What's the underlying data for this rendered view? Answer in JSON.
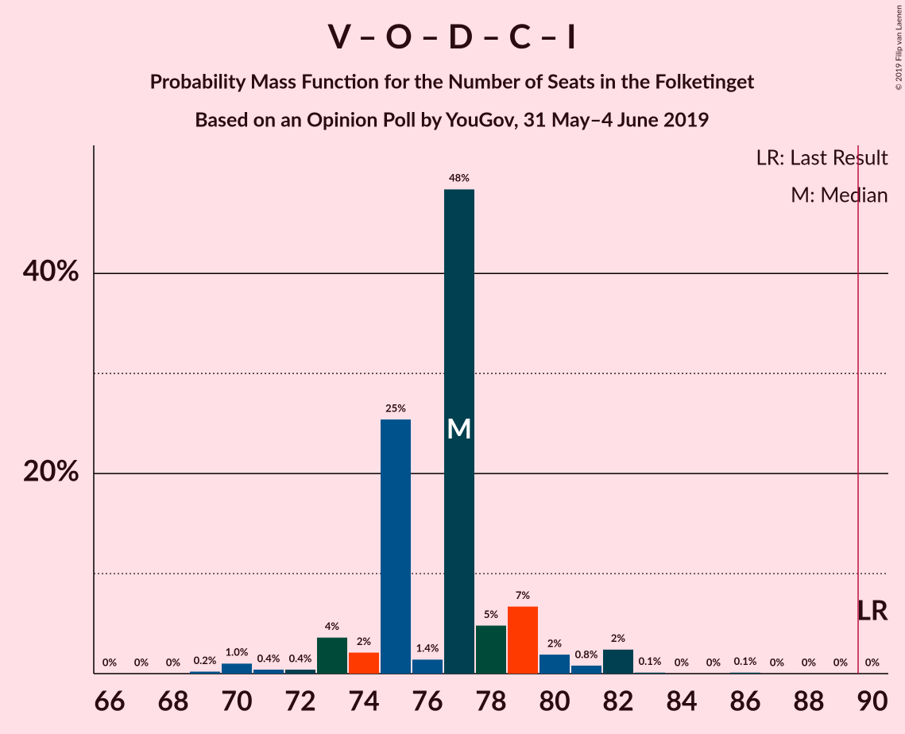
{
  "chart_data": {
    "type": "bar",
    "title": "V – O – D – C – I",
    "subtitle": "Probability Mass Function for the Number of Seats in the Folketinget",
    "subtitle2": "Based on an Opinion Poll by YouGov, 31 May–4 June 2019",
    "copyright": "© 2019 Filip van Laenen",
    "legend": [
      "LR: Last Result",
      "M: Median"
    ],
    "median": 77,
    "median_label": "M",
    "last_result": 90,
    "last_result_label": "LR",
    "categories": [
      66,
      null,
      68,
      null,
      70,
      null,
      72,
      null,
      74,
      null,
      76,
      null,
      78,
      null,
      80,
      null,
      82,
      null,
      84,
      null,
      86,
      null,
      88,
      null,
      90
    ],
    "seats": [
      66,
      67,
      68,
      69,
      70,
      71,
      72,
      73,
      74,
      75,
      76,
      77,
      78,
      79,
      80,
      81,
      82,
      83,
      84,
      85,
      86,
      87,
      88,
      89,
      90
    ],
    "values": [
      0,
      0,
      0,
      0.2,
      1.0,
      0.4,
      0.4,
      3.6,
      2.1,
      25.4,
      1.4,
      48.4,
      4.8,
      6.7,
      1.9,
      0.8,
      2.4,
      0.1,
      0,
      0,
      0.1,
      0,
      0,
      0,
      0
    ],
    "value_labels": [
      "0%",
      "0%",
      "0%",
      "0.2%",
      "1.0%",
      "0.4%",
      "0.4%",
      "4%",
      "2%",
      "25%",
      "1.4%",
      "48%",
      "5%",
      "7%",
      "2%",
      "0.8%",
      "2%",
      "0.1%",
      "0%",
      "0%",
      "0.1%",
      "0%",
      "0%",
      "0%",
      "0%"
    ],
    "colors": [
      "#00528c",
      "#00528c",
      "#00528c",
      "#00528c",
      "#00528c",
      "#00528c",
      "#004050",
      "#004a3a",
      "#ff3a00",
      "#00528c",
      "#00528c",
      "#004050",
      "#004a3a",
      "#ff3a00",
      "#00528c",
      "#00528c",
      "#004050",
      "#004050",
      "#004050",
      "#004050",
      "#004050",
      "#004050",
      "#004050",
      "#004050",
      "#004050"
    ],
    "ylim": [
      0,
      52.8
    ],
    "yticks": [
      {
        "value": 20,
        "label": "20%"
      },
      {
        "value": 40,
        "label": "40%"
      }
    ],
    "minor_yticks": [
      10,
      30
    ],
    "grid": true
  }
}
